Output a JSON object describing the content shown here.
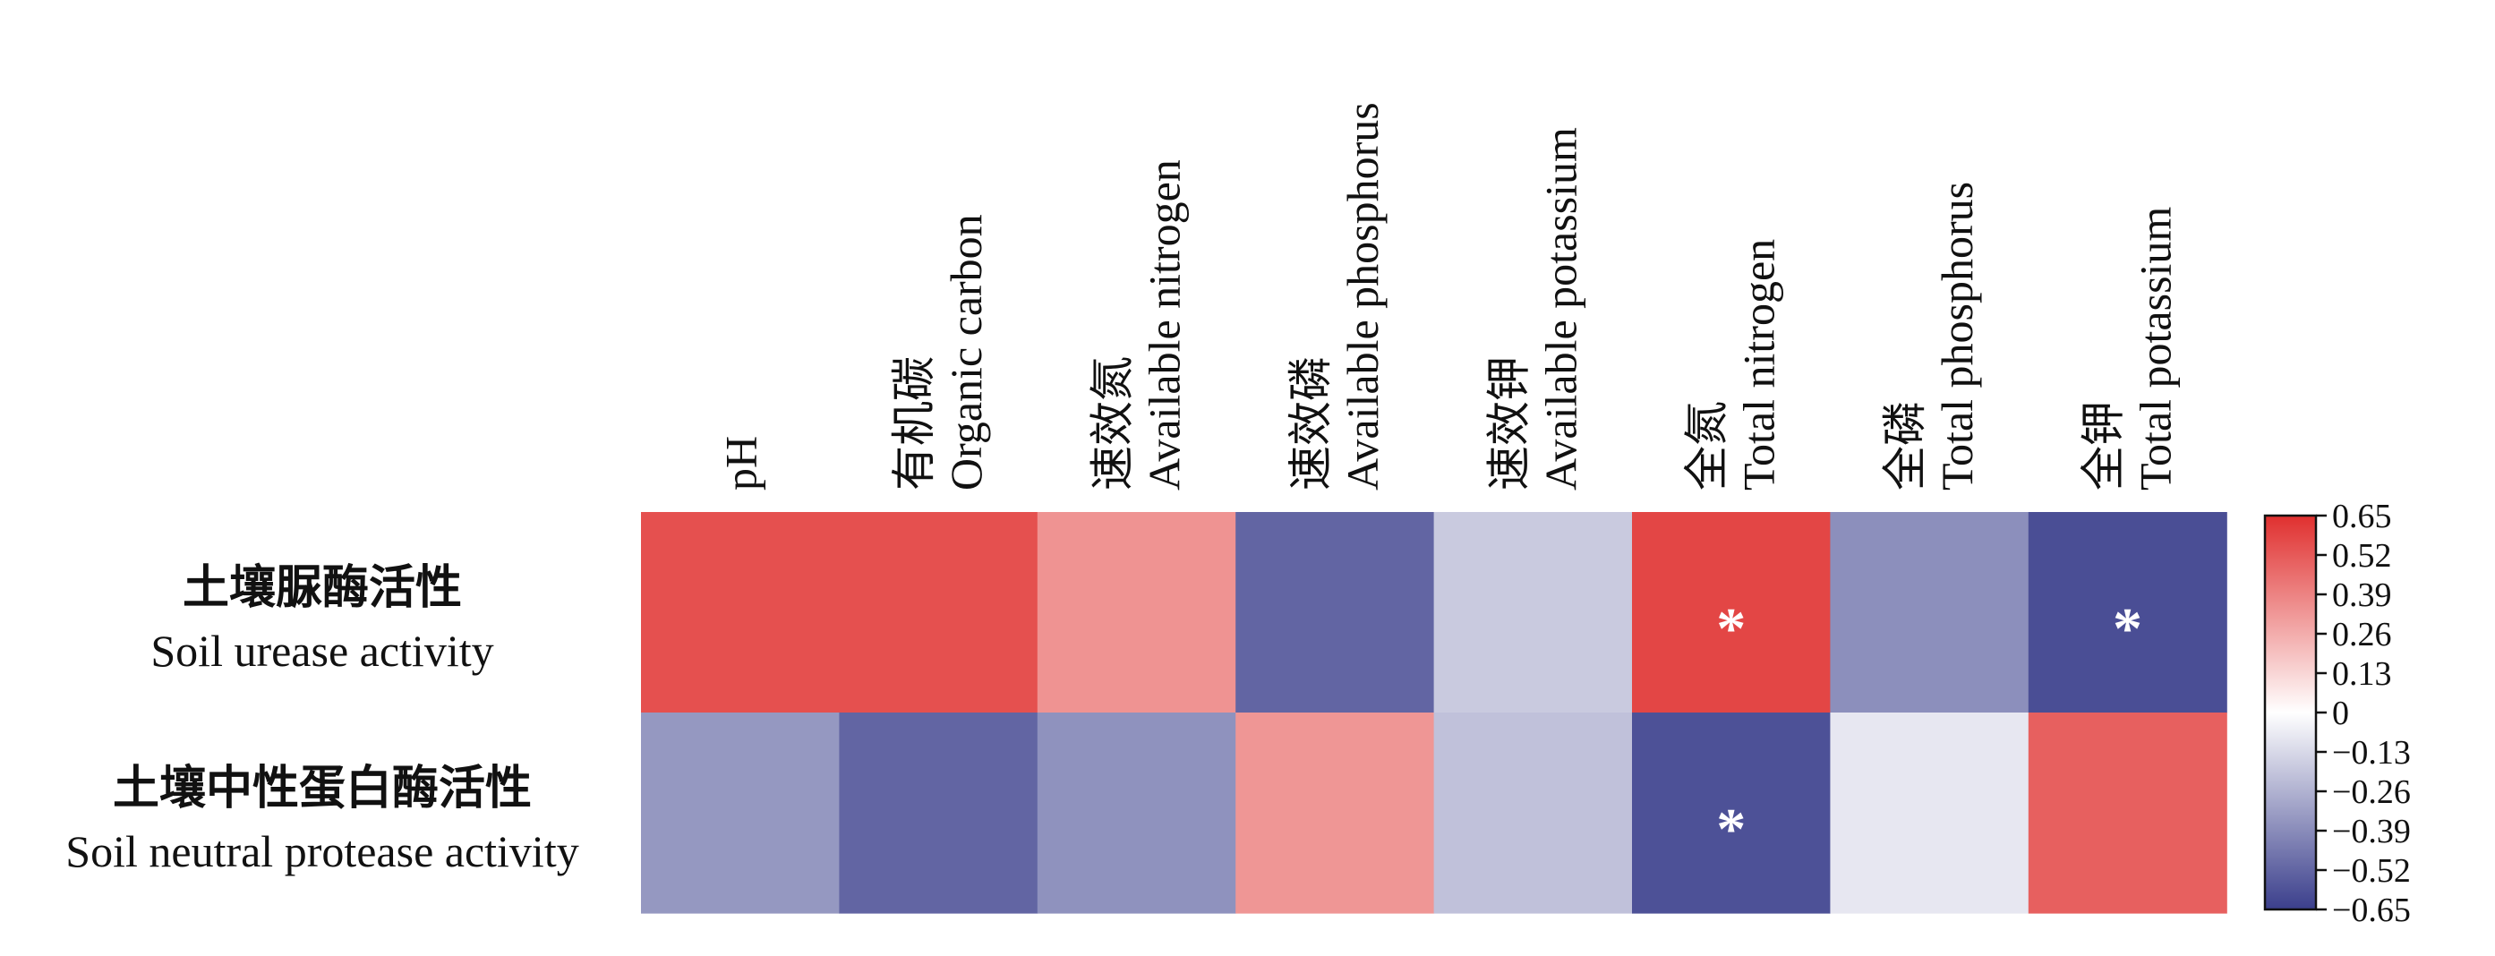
{
  "chart_data": {
    "type": "heatmap",
    "columns": [
      {
        "cn": "",
        "en": "pH"
      },
      {
        "cn": "有机碳",
        "en": "Organic carbon"
      },
      {
        "cn": "速效氮",
        "en": "Available nitrogen"
      },
      {
        "cn": "速效磷",
        "en": "Available phosphorus"
      },
      {
        "cn": "速效钾",
        "en": "Available potassium"
      },
      {
        "cn": "全氮",
        "en": "Total nitrogen"
      },
      {
        "cn": "全磷",
        "en": "Total phosphorus"
      },
      {
        "cn": "全钾",
        "en": "Total potassium"
      }
    ],
    "rows": [
      {
        "cn": "土壤脲酶活性",
        "en": "Soil urease activity",
        "values": [
          0.55,
          0.55,
          0.34,
          -0.52,
          -0.18,
          0.58,
          -0.38,
          -0.6
        ],
        "significance": [
          "",
          "",
          "",
          "",
          "",
          "*",
          "",
          "*"
        ]
      },
      {
        "cn": "土壤中性蛋白酶活性",
        "en": "Soil neutral protease activity",
        "values": [
          -0.35,
          -0.52,
          -0.37,
          0.33,
          -0.21,
          -0.59,
          -0.08,
          0.5
        ],
        "significance": [
          "",
          "",
          "",
          "",
          "",
          "*",
          "",
          ""
        ]
      }
    ],
    "colorbar": {
      "min": -0.65,
      "max": 0.65,
      "ticks": [
        "0.65",
        "0.52",
        "0.39",
        "0.26",
        "0.13",
        "0",
        "−0.13",
        "−0.26",
        "−0.39",
        "−0.52",
        "−0.65"
      ],
      "colors": {
        "negative": "#3b3f8c",
        "zero": "#ffffff",
        "positive": "#e0302f"
      }
    }
  }
}
